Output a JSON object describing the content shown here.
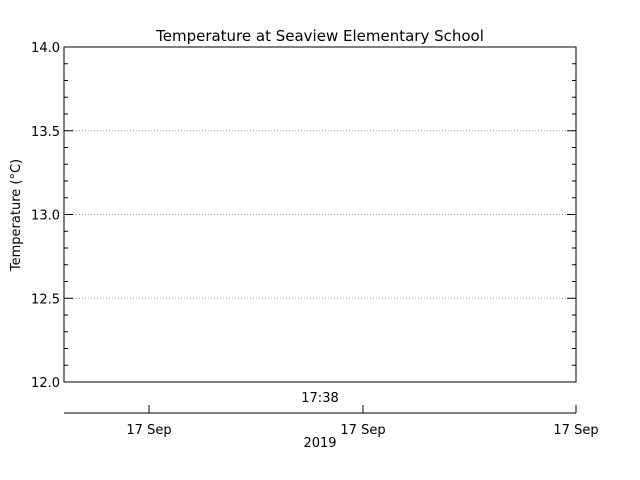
{
  "chart_data": {
    "type": "line",
    "title": "Temperature at Seaview Elementary School",
    "ylabel": "Temperature (°C)",
    "xlabel": "2019",
    "ylim": [
      12.0,
      14.0
    ],
    "yticks": [
      "12.0",
      "12.5",
      "13.0",
      "13.5",
      "14.0"
    ],
    "ytick_values": [
      12.0,
      12.5,
      13.0,
      13.5,
      14.0
    ],
    "grid": true,
    "time_annotation": "17:38",
    "date_ticks": [
      "17 Sep",
      "17 Sep",
      "17 Sep"
    ],
    "series": []
  }
}
